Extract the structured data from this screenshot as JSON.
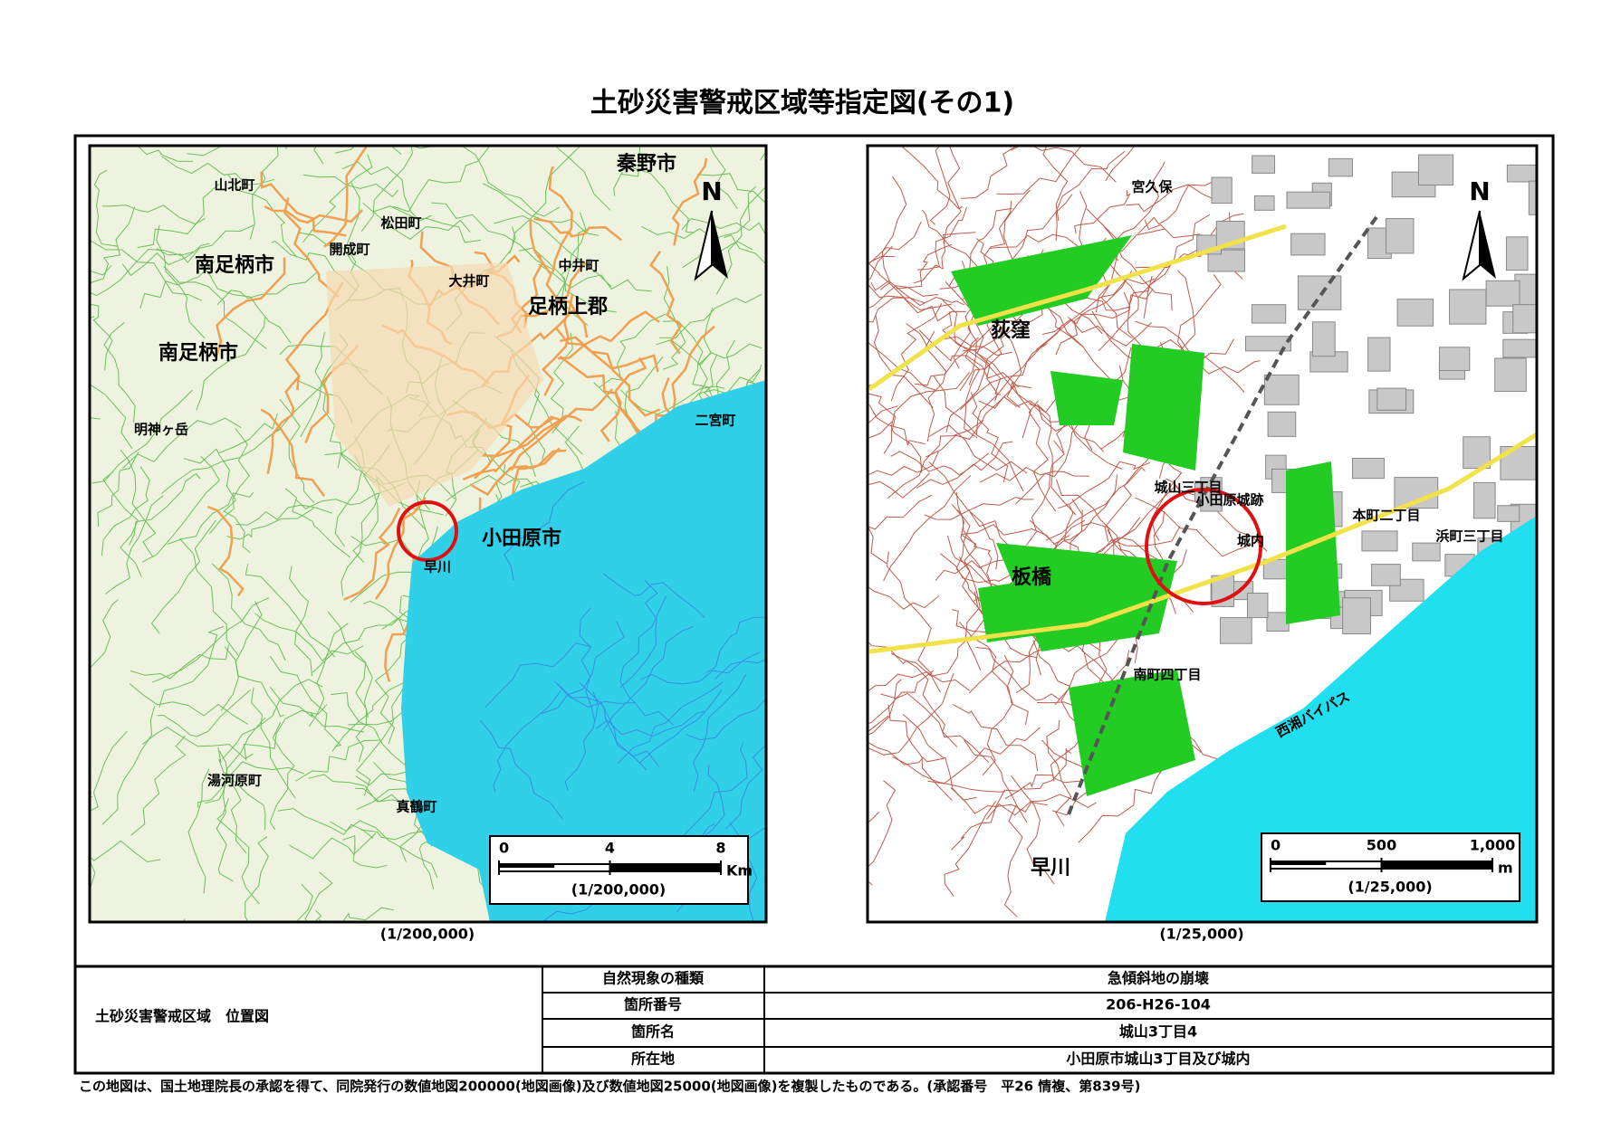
{
  "title": "土砂災害警戒区域等指定図(その1)",
  "maps": [
    {
      "north": "N",
      "caption": "(1/200,000)",
      "scale_bar": {
        "ticks": [
          0,
          4,
          8
        ],
        "unit": "Km",
        "ratio": "(1/200,000)"
      },
      "labels": [
        "秦野市",
        "山北町",
        "松田町",
        "開成町",
        "大井町",
        "中井町",
        "南足柄市",
        "南足柄市",
        "足柄上郡",
        "明神ヶ岳",
        "小田原市",
        "早川",
        "湯河原町",
        "真鶴町",
        "二宮町"
      ]
    },
    {
      "north": "N",
      "caption": "(1/25,000)",
      "scale_bar": {
        "ticks": [
          0,
          500,
          {
            "value": 1000,
            "label": "1,000"
          }
        ],
        "unit": "m",
        "ratio": "(1/25,000)"
      },
      "labels": [
        "宮久保",
        "荻窪",
        "城山三丁目",
        "小田原城跡",
        "城内",
        "板橋",
        "本町二丁目",
        "浜町三丁目",
        "南町四丁目",
        "早川",
        "西湘バイパス"
      ]
    }
  ],
  "table": {
    "heading": "土砂災害警戒区域　位置図",
    "rows": [
      [
        "自然現象の種類",
        "急傾斜地の崩壊"
      ],
      [
        "箇所番号",
        "206-H26-104"
      ],
      [
        "箇所名",
        "城山3丁目4"
      ],
      [
        "所在地",
        "小田原市城山3丁目及び城内"
      ]
    ]
  },
  "footer": "この地図は、国土地理院長の承認を得て、同院発行の数値地図200000(地図画像)及び数値地図25000(地図画像)を複製したものである。(承認番号　平26 情複、第839号)"
}
